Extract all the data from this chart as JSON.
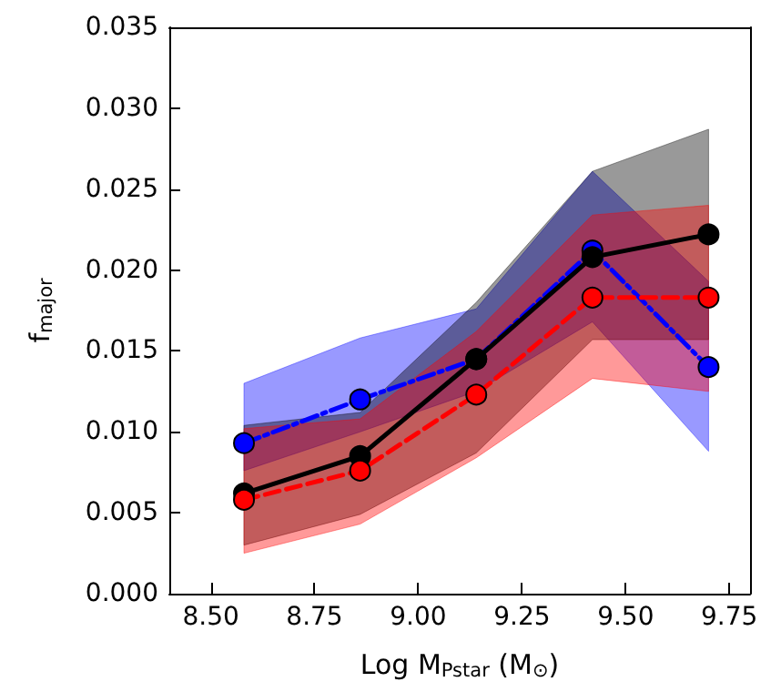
{
  "chart_data": {
    "type": "line",
    "xlabel": "Log M$_{Pstar}$ (M$_{⊙}$)",
    "ylabel": "f$_{major}$",
    "x": [
      8.58,
      8.86,
      9.14,
      9.42,
      9.7
    ],
    "series": [
      {
        "color": "#0000ff",
        "line_style": "dashdot",
        "values": [
          0.0093,
          0.012,
          0.0145,
          0.0212,
          0.014
        ],
        "lower": [
          0.0076,
          0.01,
          0.0125,
          0.0168,
          0.0088
        ],
        "upper": [
          0.013,
          0.0158,
          0.0176,
          0.0261,
          0.0193
        ]
      },
      {
        "color": "#000000",
        "line_style": "solid",
        "values": [
          0.0062,
          0.0085,
          0.0145,
          0.0208,
          0.0222
        ],
        "lower": [
          0.003,
          0.0049,
          0.0087,
          0.0157,
          0.0157
        ],
        "upper": [
          0.0104,
          0.0112,
          0.018,
          0.0261,
          0.0287
        ]
      },
      {
        "color": "#ff0000",
        "line_style": "dashed",
        "values": [
          0.0058,
          0.0076,
          0.0123,
          0.0183,
          0.0183
        ],
        "lower": [
          0.0025,
          0.0043,
          0.0084,
          0.0133,
          0.0125
        ],
        "upper": [
          0.0102,
          0.0108,
          0.0162,
          0.0234,
          0.024
        ]
      }
    ],
    "marker": "circle",
    "grid": false,
    "xlim": [
      8.4,
      9.8
    ],
    "xticks": [
      {
        "value": 8.5,
        "label": "8.50"
      },
      {
        "value": 8.75,
        "label": "8.75"
      },
      {
        "value": 9.0,
        "label": "9.00"
      },
      {
        "value": 9.25,
        "label": "9.25"
      },
      {
        "value": 9.5,
        "label": "9.50"
      },
      {
        "value": 9.75,
        "label": "9.75"
      }
    ],
    "ylim": [
      0,
      0.035
    ],
    "yticks": [
      {
        "value": 0,
        "label": "0.000"
      },
      {
        "value": 0.005,
        "label": "0.005"
      },
      {
        "value": 0.01,
        "label": "0.010"
      },
      {
        "value": 0.015,
        "label": "0.015"
      },
      {
        "value": 0.02,
        "label": "0.020"
      },
      {
        "value": 0.025,
        "label": "0.025"
      },
      {
        "value": 0.03,
        "label": "0.030"
      },
      {
        "value": 0.035,
        "label": "0.035"
      }
    ]
  }
}
